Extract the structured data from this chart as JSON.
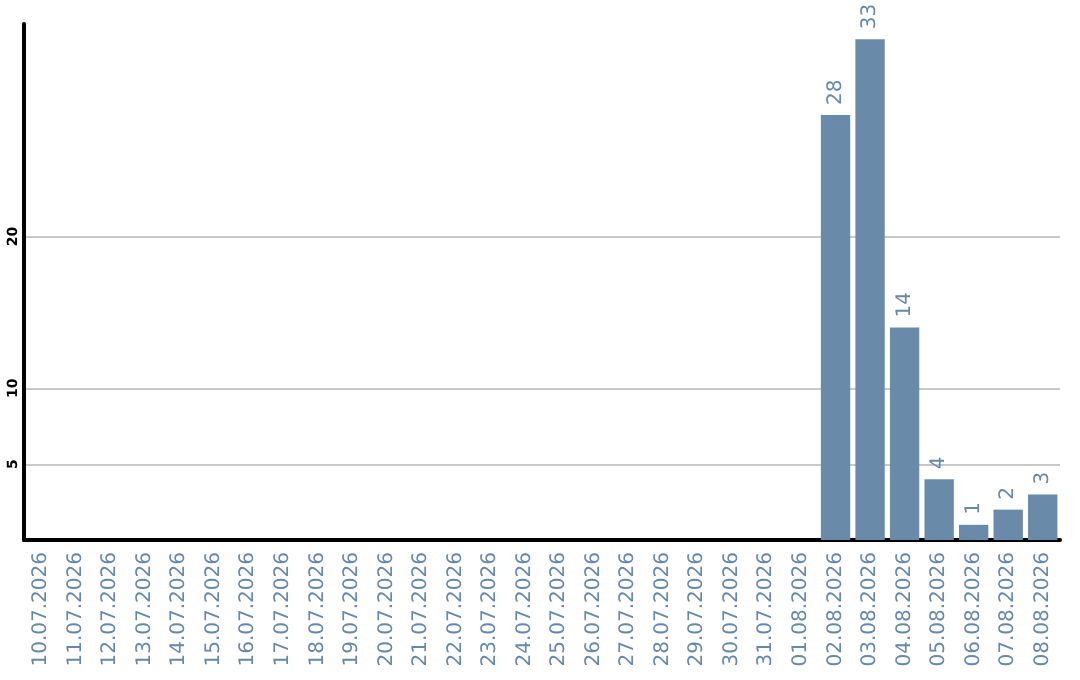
{
  "chart_data": {
    "type": "bar",
    "categories": [
      "10.07.2026",
      "11.07.2026",
      "12.07.2026",
      "13.07.2026",
      "14.07.2026",
      "15.07.2026",
      "16.07.2026",
      "17.07.2026",
      "18.07.2026",
      "19.07.2026",
      "20.07.2026",
      "21.07.2026",
      "22.07.2026",
      "23.07.2026",
      "24.07.2026",
      "25.07.2026",
      "26.07.2026",
      "27.07.2026",
      "28.07.2026",
      "29.07.2026",
      "30.07.2026",
      "31.07.2026",
      "01.08.2026",
      "02.08.2026",
      "03.08.2026",
      "04.08.2026",
      "05.08.2026",
      "06.08.2026",
      "07.08.2026",
      "08.08.2026"
    ],
    "values": [
      0,
      0,
      0,
      0,
      0,
      0,
      0,
      0,
      0,
      0,
      0,
      0,
      0,
      0,
      0,
      0,
      0,
      0,
      0,
      0,
      0,
      0,
      0,
      28,
      33,
      14,
      4,
      1,
      2,
      3
    ],
    "value_labels": [
      null,
      null,
      null,
      null,
      null,
      null,
      null,
      null,
      null,
      null,
      null,
      null,
      null,
      null,
      null,
      null,
      null,
      null,
      null,
      null,
      null,
      null,
      null,
      "28",
      "33",
      "14",
      "4",
      "1",
      "2",
      "3"
    ],
    "color": "#6a8aaa",
    "ylim": [
      0,
      34
    ],
    "yticks": [
      5,
      10,
      20
    ],
    "grid": "y"
  }
}
